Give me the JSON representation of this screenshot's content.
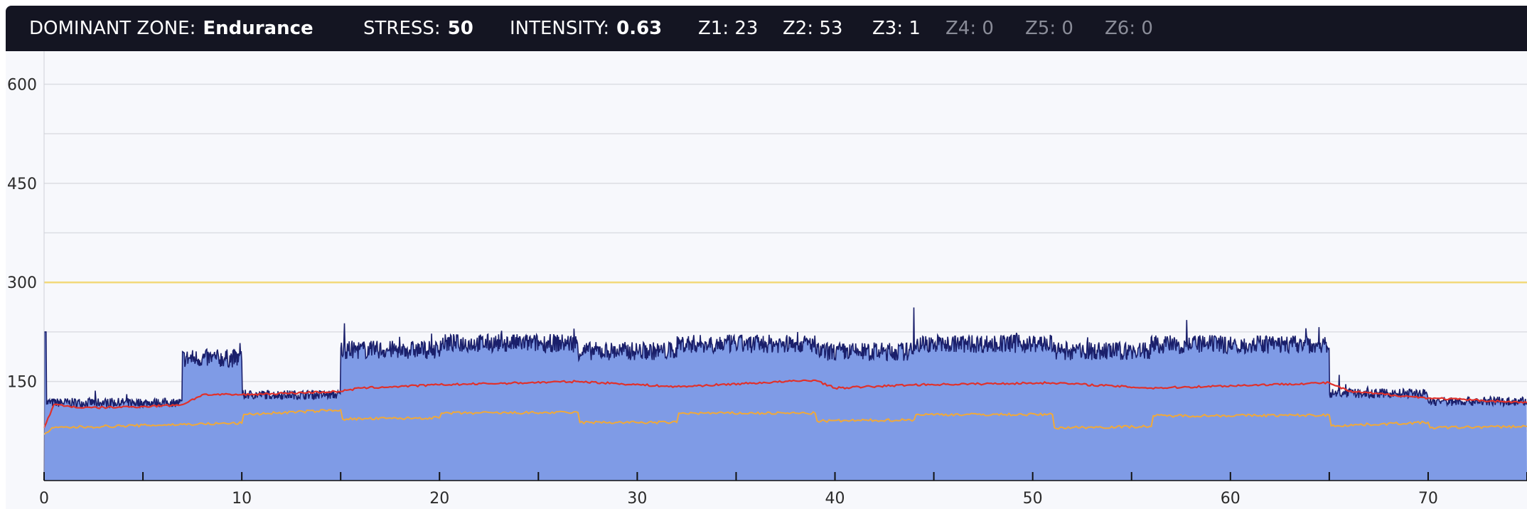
{
  "header": {
    "dominant_zone": {
      "label": "DOMINANT ZONE:",
      "value": "Endurance"
    },
    "stress": {
      "label": "STRESS:",
      "value": "50"
    },
    "intensity": {
      "label": "INTENSITY:",
      "value": "0.63"
    },
    "zones": [
      {
        "text": "Z1: 23",
        "active": true
      },
      {
        "text": "Z2: 53",
        "active": true
      },
      {
        "text": "Z3: 1",
        "active": true
      },
      {
        "text": "Z4: 0",
        "active": false
      },
      {
        "text": "Z5: 0",
        "active": false
      },
      {
        "text": "Z6: 0",
        "active": false
      }
    ]
  },
  "chart_data": {
    "type": "area",
    "x_unit_note": "",
    "xlim": [
      0,
      75
    ],
    "ylim": [
      0,
      650
    ],
    "y_ticks": [
      150,
      300,
      450,
      600
    ],
    "x_ticks": [
      0,
      10,
      20,
      30,
      40,
      50,
      60,
      70
    ],
    "threshold_line": {
      "value": 300,
      "color": "#f2d97a"
    },
    "colors": {
      "power_fill": "#7f9be6",
      "power_line": "#1a1f6b",
      "red_line": "#e0312b",
      "orange_line": "#f0a93a",
      "grid": "#dcdde3"
    },
    "power_segments": [
      {
        "start": 0.0,
        "end": 0.1,
        "value": 225
      },
      {
        "start": 0.1,
        "end": 7.0,
        "value": 118
      },
      {
        "start": 7.0,
        "end": 10.0,
        "value": 185
      },
      {
        "start": 10.0,
        "end": 15.0,
        "value": 130
      },
      {
        "start": 15.0,
        "end": 20.0,
        "value": 198
      },
      {
        "start": 20.0,
        "end": 27.0,
        "value": 208
      },
      {
        "start": 27.0,
        "end": 32.0,
        "value": 196
      },
      {
        "start": 32.0,
        "end": 39.0,
        "value": 207
      },
      {
        "start": 39.0,
        "end": 44.0,
        "value": 195
      },
      {
        "start": 44.0,
        "end": 51.0,
        "value": 207
      },
      {
        "start": 51.0,
        "end": 56.0,
        "value": 196
      },
      {
        "start": 56.0,
        "end": 65.0,
        "value": 206
      },
      {
        "start": 65.0,
        "end": 70.0,
        "value": 132
      },
      {
        "start": 70.0,
        "end": 75.0,
        "value": 120
      }
    ],
    "power_spikes": [
      {
        "x": 0.05,
        "value": 225
      },
      {
        "x": 15.2,
        "value": 238
      },
      {
        "x": 26.8,
        "value": 230
      },
      {
        "x": 44.0,
        "value": 262
      },
      {
        "x": 57.8,
        "value": 243
      },
      {
        "x": 65.5,
        "value": 160
      }
    ],
    "red_series": {
      "x": [
        0,
        0.5,
        2,
        5,
        7,
        8,
        10,
        15,
        16,
        20,
        27,
        32,
        39,
        40,
        44,
        51,
        56,
        65,
        66,
        70,
        75
      ],
      "values": [
        80,
        115,
        110,
        112,
        115,
        130,
        130,
        135,
        140,
        145,
        150,
        142,
        152,
        140,
        145,
        148,
        140,
        148,
        135,
        125,
        118
      ]
    },
    "orange_series": {
      "x": [
        0,
        0.5,
        7,
        10,
        10.1,
        15,
        15.1,
        20,
        20.1,
        27,
        27.1,
        32,
        32.1,
        39,
        39.1,
        44,
        44.1,
        51,
        51.1,
        56,
        56.1,
        65,
        65.1,
        70,
        70.1,
        75
      ],
      "values": [
        70,
        80,
        85,
        87,
        100,
        107,
        93,
        95,
        102,
        103,
        88,
        88,
        102,
        102,
        90,
        92,
        100,
        100,
        80,
        82,
        98,
        99,
        83,
        88,
        80,
        82
      ]
    }
  }
}
